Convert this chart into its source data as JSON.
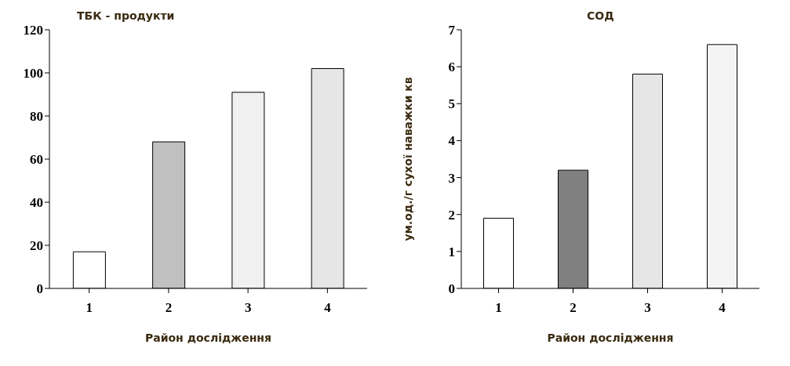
{
  "chart_data": [
    {
      "type": "bar",
      "title": "ТБК - продукти",
      "xlabel": "Район дослідження",
      "categories": [
        "1",
        "2",
        "3",
        "4"
      ],
      "values": [
        17,
        68,
        91,
        102
      ],
      "colors": [
        "#ffffff",
        "#c0c0c0",
        "#f0f0f0",
        "#e6e6e6"
      ],
      "ylim": [
        0,
        120
      ],
      "yticks": [
        0,
        20,
        40,
        60,
        80,
        100,
        120
      ],
      "grid": false
    },
    {
      "type": "bar",
      "title": "СОД",
      "xlabel": "Район дослідження",
      "ylabel": "ум.од./г сухої наважки кв",
      "categories": [
        "1",
        "2",
        "3",
        "4"
      ],
      "values": [
        1.9,
        3.2,
        5.8,
        6.6
      ],
      "colors": [
        "#ffffff",
        "#808080",
        "#e6e6e6",
        "#f4f4f4"
      ],
      "ylim": [
        0,
        7
      ],
      "yticks": [
        0,
        1,
        2,
        3,
        4,
        5,
        6,
        7
      ],
      "grid": false
    }
  ]
}
